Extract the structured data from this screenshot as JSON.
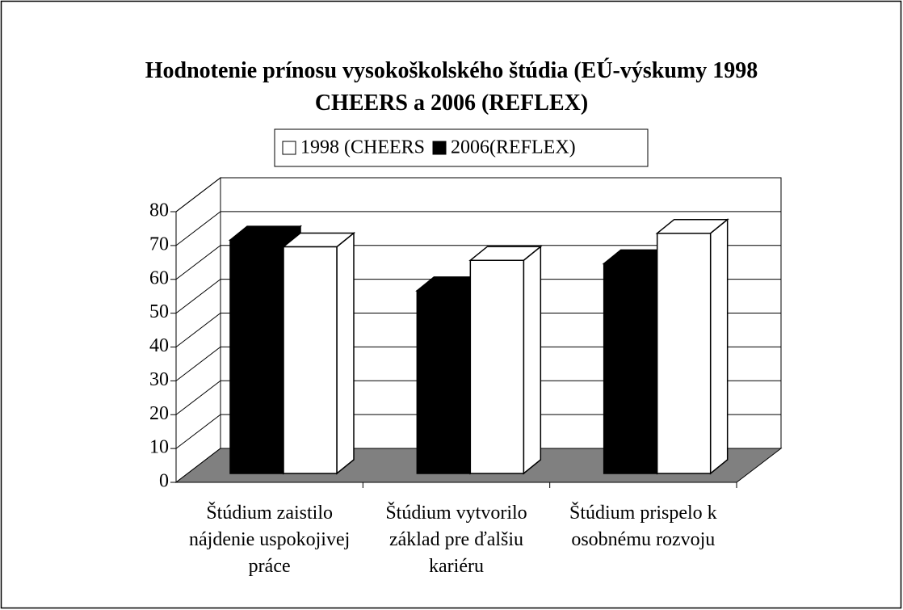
{
  "chart_data": {
    "type": "bar3d",
    "title": "Hodnotenie prínosu vysokoškolského štúdia (EÚ-výskumy 1998\nCHEERS a 2006 (REFLEX)",
    "categories": [
      "Štúdium zaistilo\nnájdenie uspokojivej\npráce",
      "Štúdium vytvorilo\nzáklad pre ďalšiu\nkariéru",
      "Štúdium prispelo k\nosobnému rozvoju"
    ],
    "series": [
      {
        "name": "1998 (CHEERS",
        "color": "#ffffff",
        "values": [
          67,
          63,
          71
        ]
      },
      {
        "name": "2006(REFLEX)",
        "color": "#000000",
        "values": [
          69,
          54,
          62
        ]
      }
    ],
    "ylim": [
      0,
      80
    ],
    "yticks": [
      0,
      10,
      20,
      30,
      40,
      50,
      60,
      70,
      80
    ],
    "grid": true,
    "legend": "top",
    "floor_color": "#808080"
  }
}
